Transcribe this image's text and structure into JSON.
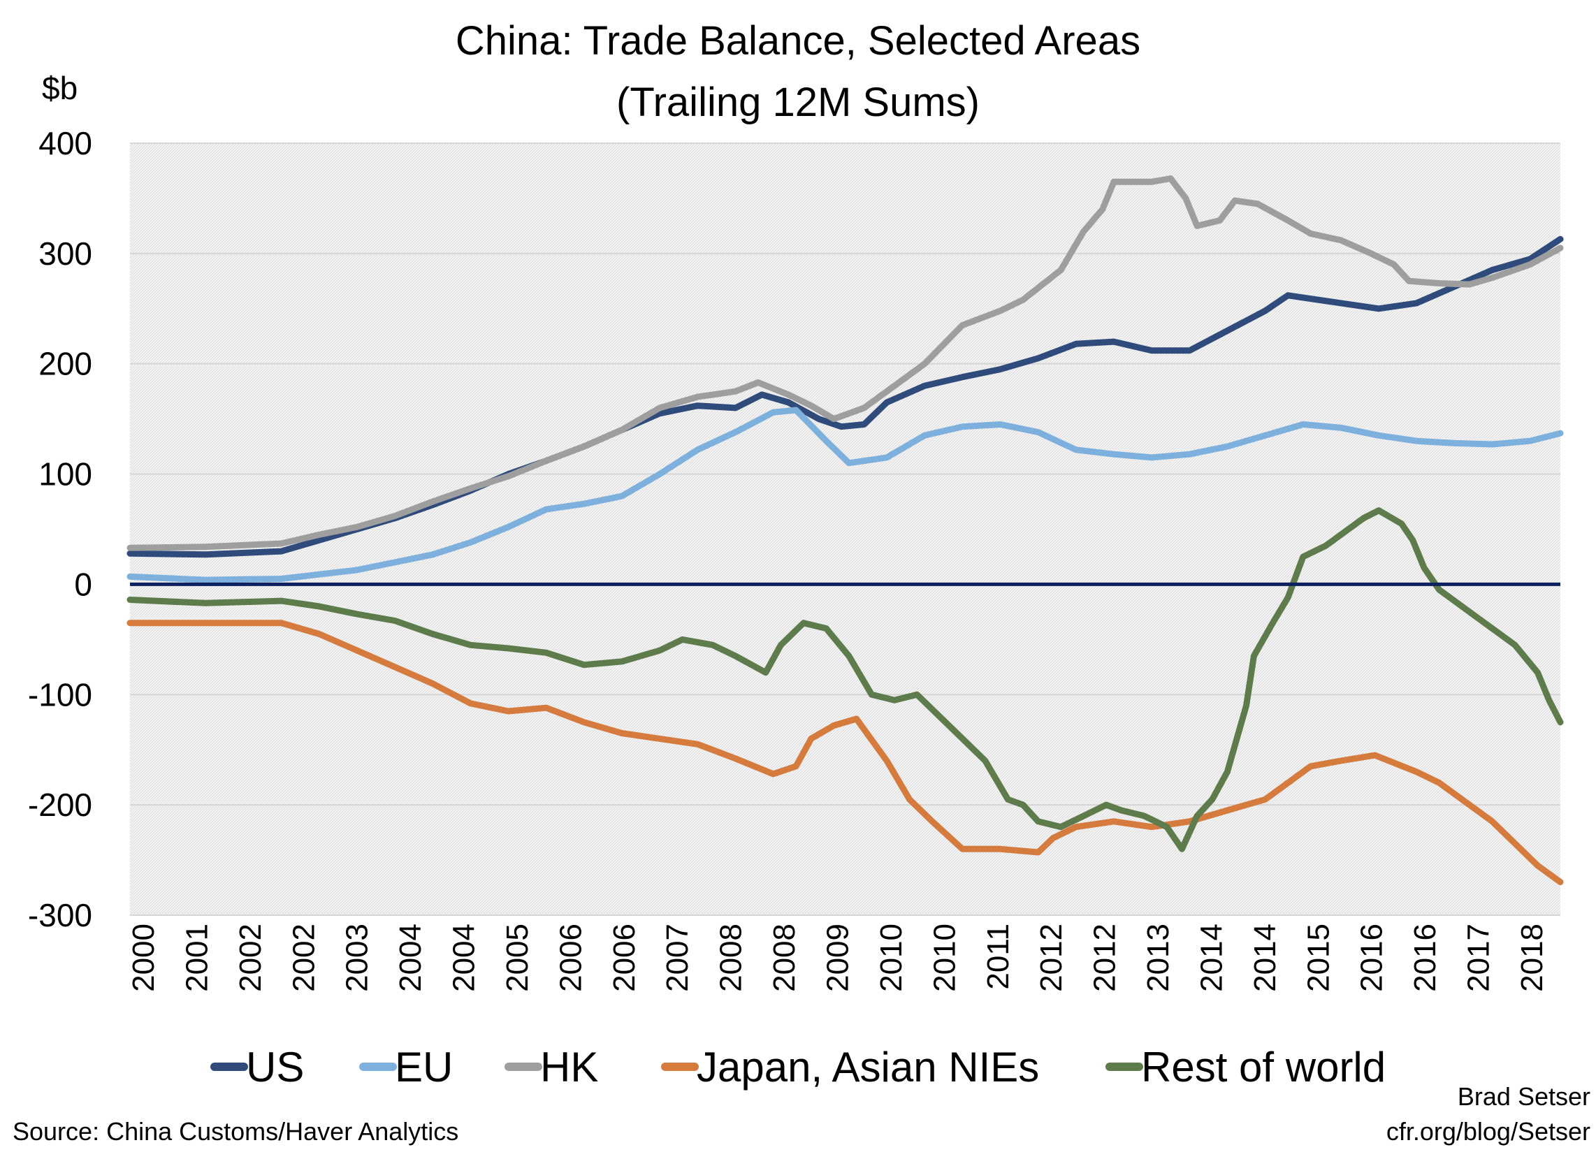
{
  "chart_data": {
    "type": "line",
    "title": "China: Trade Balance, Selected Areas",
    "subtitle": "(Trailing 12M Sums)",
    "ylabel": "$b",
    "ylim": [
      -300,
      400
    ],
    "yticks": [
      400,
      300,
      200,
      100,
      0,
      -100,
      -200,
      -300
    ],
    "xlim": [
      2000,
      2018.9
    ],
    "xtick_labels": [
      "2000",
      "2001",
      "2002",
      "2002",
      "2003",
      "2004",
      "2004",
      "2005",
      "2006",
      "2006",
      "2007",
      "2008",
      "2008",
      "2009",
      "2010",
      "2010",
      "2011",
      "2012",
      "2012",
      "2013",
      "2014",
      "2014",
      "2015",
      "2016",
      "2016",
      "2017",
      "2018"
    ],
    "grid": true,
    "legend_position": "bottom",
    "series": [
      {
        "name": "US",
        "color": "#2F4B7C",
        "x": [
          2000,
          2001,
          2002,
          2002.5,
          2003,
          2003.5,
          2004,
          2004.5,
          2005,
          2005.5,
          2006,
          2006.5,
          2007,
          2007.5,
          2008,
          2008.35,
          2008.7,
          2009.1,
          2009.4,
          2009.7,
          2010,
          2010.5,
          2011,
          2011.5,
          2012,
          2012.5,
          2013,
          2013.5,
          2014,
          2014.5,
          2015,
          2015.3,
          2015.7,
          2016,
          2016.5,
          2017,
          2017.5,
          2018,
          2018.5,
          2018.9
        ],
        "y": [
          28,
          27,
          30,
          40,
          50,
          60,
          72,
          85,
          100,
          112,
          125,
          140,
          155,
          162,
          160,
          172,
          165,
          150,
          143,
          145,
          165,
          180,
          188,
          195,
          205,
          218,
          220,
          212,
          212,
          230,
          248,
          262,
          258,
          255,
          250,
          255,
          270,
          285,
          295,
          313
        ]
      },
      {
        "name": "EU",
        "color": "#7EB0DE",
        "x": [
          2000,
          2001,
          2002,
          2002.5,
          2003,
          2003.5,
          2004,
          2004.5,
          2005,
          2005.5,
          2006,
          2006.5,
          2007,
          2007.5,
          2008,
          2008.5,
          2008.8,
          2009.2,
          2009.5,
          2010,
          2010.5,
          2011,
          2011.5,
          2012,
          2012.5,
          2013,
          2013.5,
          2014,
          2014.5,
          2015,
          2015.5,
          2016,
          2016.5,
          2017,
          2017.5,
          2018,
          2018.5,
          2018.9
        ],
        "y": [
          7,
          4,
          5,
          9,
          13,
          20,
          27,
          38,
          52,
          68,
          73,
          80,
          100,
          122,
          138,
          156,
          158,
          130,
          110,
          115,
          135,
          143,
          145,
          138,
          122,
          118,
          115,
          118,
          125,
          135,
          145,
          142,
          135,
          130,
          128,
          127,
          130,
          137
        ]
      },
      {
        "name": "HK",
        "color": "#9E9E9E",
        "x": [
          2000,
          2001,
          2002,
          2002.5,
          2003,
          2003.5,
          2004,
          2004.5,
          2005,
          2005.5,
          2006,
          2006.5,
          2007,
          2007.5,
          2008,
          2008.3,
          2008.7,
          2009,
          2009.3,
          2009.7,
          2010,
          2010.5,
          2011,
          2011.5,
          2011.8,
          2012.3,
          2012.6,
          2012.85,
          2013,
          2013.5,
          2013.75,
          2013.95,
          2014.1,
          2014.4,
          2014.6,
          2014.9,
          2015.3,
          2015.6,
          2016,
          2016.4,
          2016.7,
          2016.9,
          2017.3,
          2017.7,
          2018,
          2018.5,
          2018.9
        ],
        "y": [
          33,
          34,
          37,
          45,
          52,
          62,
          75,
          87,
          98,
          112,
          125,
          140,
          160,
          170,
          175,
          183,
          172,
          162,
          150,
          160,
          175,
          200,
          235,
          248,
          258,
          285,
          320,
          340,
          365,
          365,
          368,
          350,
          325,
          330,
          348,
          345,
          330,
          318,
          312,
          300,
          290,
          275,
          273,
          272,
          278,
          290,
          305
        ]
      },
      {
        "name": "Japan, Asian NIEs",
        "color": "#D57B3E",
        "x": [
          2000,
          2001,
          2002,
          2002.5,
          2003,
          2003.5,
          2004,
          2004.5,
          2005,
          2005.5,
          2006,
          2006.5,
          2007,
          2007.5,
          2008,
          2008.5,
          2008.8,
          2009.0,
          2009.3,
          2009.6,
          2010,
          2010.3,
          2010.6,
          2011,
          2011.5,
          2012,
          2012.2,
          2012.5,
          2013,
          2013.5,
          2014,
          2014.5,
          2015,
          2015.3,
          2015.6,
          2016,
          2016.45,
          2017,
          2017.3,
          2017.7,
          2018,
          2018.3,
          2018.6,
          2018.9
        ],
        "y": [
          -35,
          -35,
          -35,
          -45,
          -60,
          -75,
          -90,
          -108,
          -115,
          -112,
          -125,
          -135,
          -140,
          -145,
          -158,
          -172,
          -165,
          -140,
          -128,
          -122,
          -160,
          -195,
          -215,
          -240,
          -240,
          -243,
          -230,
          -220,
          -215,
          -220,
          -215,
          -205,
          -195,
          -180,
          -165,
          -160,
          -155,
          -170,
          -180,
          -200,
          -215,
          -235,
          -255,
          -270
        ]
      },
      {
        "name": "Rest of world",
        "color": "#5E7B4C",
        "x": [
          2000,
          2001,
          2002,
          2002.5,
          2003,
          2003.5,
          2004,
          2004.5,
          2005,
          2005.5,
          2006,
          2006.5,
          2007,
          2007.3,
          2007.7,
          2008,
          2008.4,
          2008.6,
          2008.9,
          2009.2,
          2009.5,
          2009.8,
          2010.1,
          2010.4,
          2010.7,
          2011,
          2011.3,
          2011.6,
          2011.8,
          2012,
          2012.3,
          2012.6,
          2012.9,
          2013.1,
          2013.4,
          2013.7,
          2013.9,
          2014.1,
          2014.3,
          2014.5,
          2014.75,
          2014.85,
          2015.1,
          2015.3,
          2015.5,
          2015.8,
          2016.1,
          2016.3,
          2016.5,
          2016.8,
          2016.95,
          2017.1,
          2017.3,
          2017.6,
          2017.9,
          2018.1,
          2018.3,
          2018.6,
          2018.75,
          2018.9
        ],
        "y": [
          -14,
          -17,
          -15,
          -20,
          -27,
          -33,
          -45,
          -55,
          -58,
          -62,
          -73,
          -70,
          -60,
          -50,
          -55,
          -65,
          -80,
          -55,
          -35,
          -40,
          -65,
          -100,
          -105,
          -100,
          -120,
          -140,
          -160,
          -195,
          -200,
          -215,
          -220,
          -210,
          -200,
          -205,
          -210,
          -220,
          -240,
          -210,
          -195,
          -170,
          -110,
          -65,
          -35,
          -12,
          25,
          35,
          50,
          60,
          67,
          55,
          40,
          15,
          -5,
          -20,
          -35,
          -45,
          -55,
          -80,
          -105,
          -125
        ]
      }
    ]
  },
  "footer": {
    "source": "Source: China Customs/Haver Analytics",
    "author": "Brad Setser",
    "url": "cfr.org/blog/Setser"
  }
}
